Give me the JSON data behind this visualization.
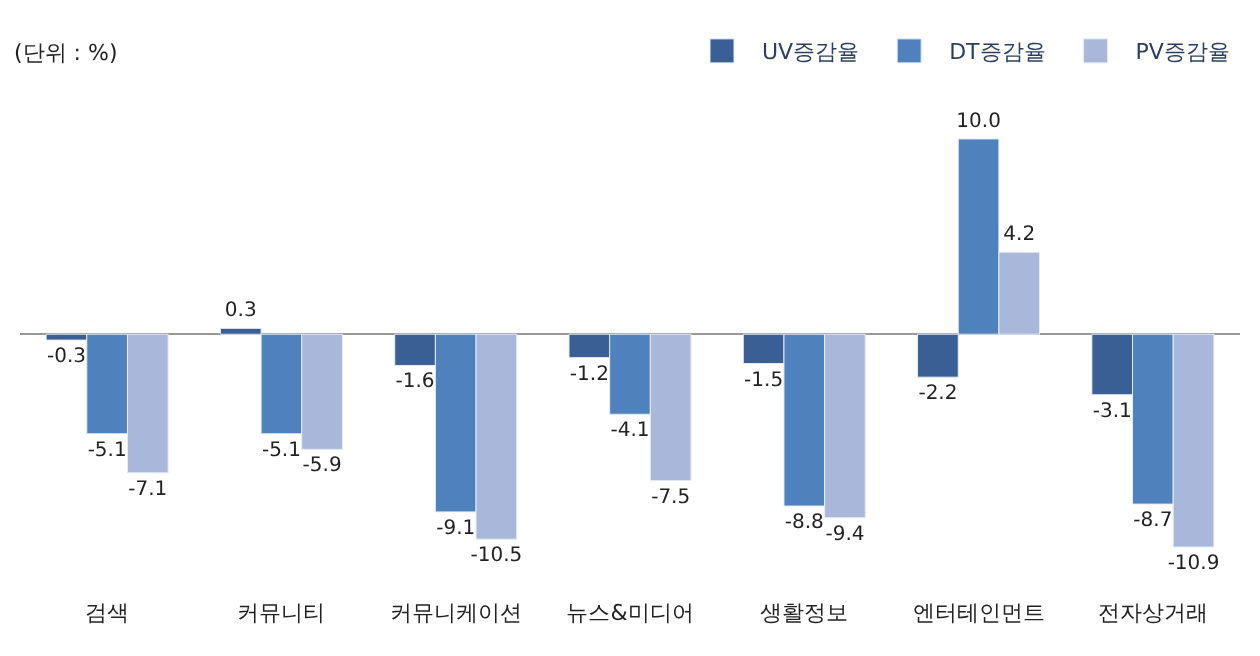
{
  "chart_data": {
    "type": "bar",
    "categories": [
      "검색",
      "커뮤니티",
      "커뮤니케이션",
      "뉴스&미디어",
      "생활정보",
      "엔터테인먼트",
      "전자상거래"
    ],
    "series": [
      {
        "name": "UV증감율",
        "color": "#3a5f95",
        "values": [
          -0.3,
          0.3,
          -1.6,
          -1.2,
          -1.5,
          -2.2,
          -3.1
        ],
        "value_labels": [
          "-0.3",
          "0.3",
          "-1.6",
          "-1.2",
          "-1.5",
          "-2.2",
          "-3.1"
        ]
      },
      {
        "name": "DT증감율",
        "color": "#4f81bd",
        "values": [
          -5.1,
          -5.1,
          -9.1,
          -4.1,
          -8.8,
          10.0,
          -8.7
        ],
        "value_labels": [
          "-5.1",
          "-5.1",
          "-9.1",
          "-4.1",
          "-8.8",
          "10.0",
          "-8.7"
        ]
      },
      {
        "name": "PV증감율",
        "color": "#a9b8da",
        "values": [
          -7.1,
          -5.9,
          -10.5,
          -7.5,
          -9.4,
          4.2,
          -10.9
        ],
        "value_labels": [
          "-7.1",
          "-5.9",
          "-10.5",
          "-7.5",
          "-9.4",
          "4.2",
          "-10.9"
        ]
      }
    ],
    "annotations": [
      "(단위 : %)"
    ],
    "legend": "top right"
  }
}
